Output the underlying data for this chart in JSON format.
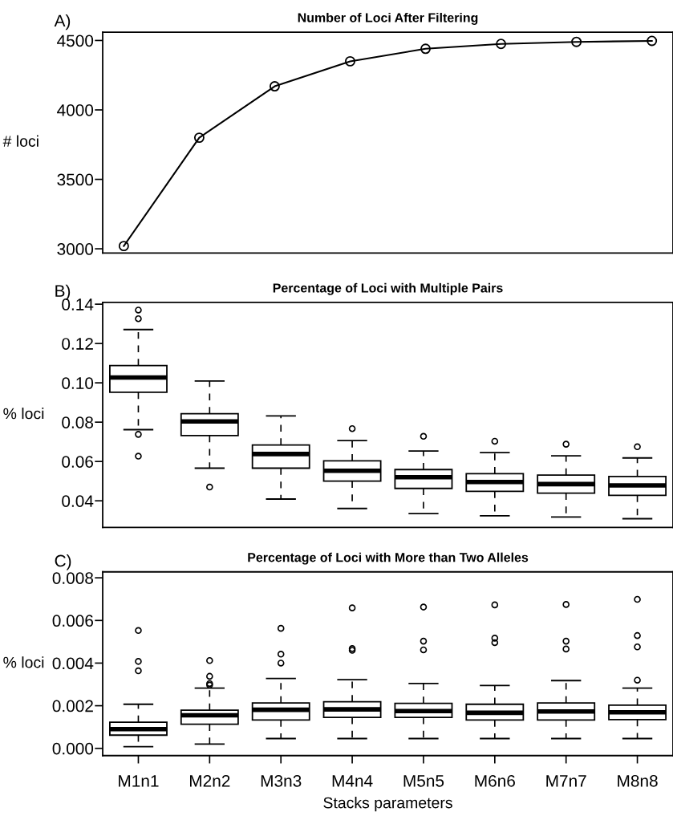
{
  "chart_data": [
    {
      "type": "line",
      "title": "Number of Loci After Filtering",
      "ylabel": "# loci",
      "annotations": [
        "A)"
      ],
      "categories": [
        null,
        null,
        null,
        null,
        null,
        null,
        null,
        null
      ],
      "ylim": [
        2970,
        4560
      ],
      "yticks": [
        3000,
        3500,
        4000,
        4500
      ],
      "tick_labels": "y",
      "marker": "circle",
      "line_style": "solid",
      "series": [
        {
          "color": "#000000",
          "values": [
            3020,
            3800,
            4170,
            4350,
            4440,
            4475,
            4490,
            4497
          ]
        }
      ]
    },
    {
      "type": "box",
      "title": "Percentage of Loci with Multiple Pairs",
      "ylabel": "% loci",
      "annotations": [
        "B)"
      ],
      "categories": [
        null,
        null,
        null,
        null,
        null,
        null,
        null,
        null
      ],
      "ylim": [
        0.0265,
        0.1409
      ],
      "yticks": [
        0.04,
        0.06,
        0.08,
        {
          "value": 0.1,
          "label": "0.10"
        },
        0.12,
        0.14
      ],
      "tick_labels": "y",
      "boxes": [
        {
          "low": 0.0762,
          "q1": 0.0952,
          "median": 0.1027,
          "q3": 0.1088,
          "high": 0.1271,
          "outliers": [
            0.137,
            0.1326,
            0.0738,
            0.0627
          ]
        },
        {
          "low": 0.0566,
          "q1": 0.0732,
          "median": 0.0804,
          "q3": 0.0843,
          "high": 0.1009,
          "outliers": [
            0.047
          ]
        },
        {
          "low": 0.0409,
          "q1": 0.0566,
          "median": 0.0638,
          "q3": 0.0684,
          "high": 0.0832
        },
        {
          "low": 0.0361,
          "q1": 0.05,
          "median": 0.0553,
          "q3": 0.0603,
          "high": 0.0706,
          "outliers": [
            0.0767
          ]
        },
        {
          "low": 0.0335,
          "q1": 0.0463,
          "median": 0.052,
          "q3": 0.0559,
          "high": 0.0653,
          "outliers": [
            0.0728
          ]
        },
        {
          "low": 0.0324,
          "q1": 0.0448,
          "median": 0.0496,
          "q3": 0.0538,
          "high": 0.0645,
          "outliers": [
            0.0703
          ]
        },
        {
          "low": 0.0318,
          "q1": 0.0439,
          "median": 0.0485,
          "q3": 0.0531,
          "high": 0.0629,
          "outliers": [
            0.0688
          ]
        },
        {
          "low": 0.0309,
          "q1": 0.0428,
          "median": 0.0478,
          "q3": 0.0524,
          "high": 0.0618,
          "outliers": [
            0.0675
          ]
        }
      ]
    },
    {
      "type": "box",
      "title": "Percentage of Loci with More than Two Alleles",
      "ylabel": "% loci",
      "xlabel": "Stacks parameters",
      "annotations": [
        "C)"
      ],
      "categories": [
        "M1n1",
        "M2n2",
        "M3n3",
        "M4n4",
        "M5n5",
        "M6n6",
        "M7n7",
        "M8n8"
      ],
      "ylim": [
        -0.00034,
        0.00828
      ],
      "yticks": [
        {
          "value": 0,
          "label": "0.000"
        },
        {
          "value": 0.002,
          "label": "0.002"
        },
        {
          "value": 0.004,
          "label": "0.004"
        },
        {
          "value": 0.006,
          "label": "0.006"
        },
        {
          "value": 0.008,
          "label": "0.008"
        }
      ],
      "boxes": [
        {
          "low": 8e-05,
          "q1": 0.00062,
          "median": 0.0009,
          "q3": 0.00123,
          "high": 0.00207,
          "outliers": [
            0.00553,
            0.00408,
            0.00364
          ]
        },
        {
          "low": 0.0002,
          "q1": 0.00113,
          "median": 0.00155,
          "q3": 0.00179,
          "high": 0.00283,
          "outliers": [
            0.00412,
            0.00338,
            0.00304,
            0.00297
          ]
        },
        {
          "low": 0.00046,
          "q1": 0.00133,
          "median": 0.00181,
          "q3": 0.00213,
          "high": 0.00328,
          "outliers": [
            0.00563,
            0.00442,
            0.004
          ]
        },
        {
          "low": 0.00046,
          "q1": 0.00145,
          "median": 0.00183,
          "q3": 0.00219,
          "high": 0.00322,
          "outliers": [
            0.00659,
            0.00468,
            0.0046
          ]
        },
        {
          "low": 0.00046,
          "q1": 0.00145,
          "median": 0.00175,
          "q3": 0.00211,
          "high": 0.00304,
          "outliers": [
            0.00663,
            0.00503,
            0.00462
          ]
        },
        {
          "low": 0.00046,
          "q1": 0.00133,
          "median": 0.00167,
          "q3": 0.00207,
          "high": 0.00295,
          "outliers": [
            0.00673,
            0.00517,
            0.00496
          ]
        },
        {
          "low": 0.00046,
          "q1": 0.00133,
          "median": 0.00173,
          "q3": 0.00213,
          "high": 0.00318,
          "outliers": [
            0.00675,
            0.00503,
            0.00466
          ]
        },
        {
          "low": 0.00046,
          "q1": 0.00135,
          "median": 0.00169,
          "q3": 0.00203,
          "high": 0.00283,
          "outliers": [
            0.00699,
            0.00529,
            0.00476,
            0.0032
          ]
        }
      ]
    }
  ]
}
